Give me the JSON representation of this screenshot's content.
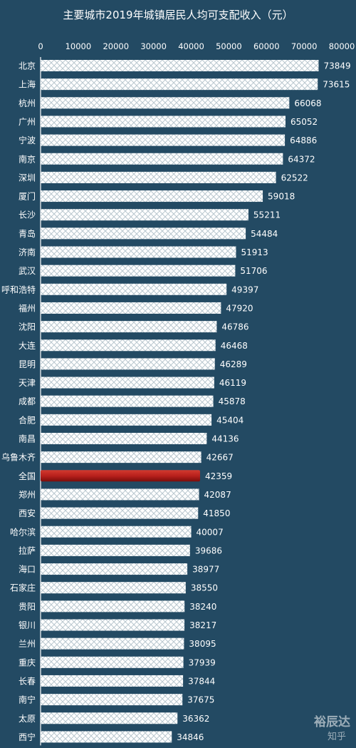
{
  "colors": {
    "background": "#234a63",
    "bar": "#ffffff",
    "bar_pattern_line": "#b9c7cf",
    "highlight_bar": "#b8201c",
    "highlight_bar_dark": "#7a0d0b",
    "text": "#ffffff"
  },
  "watermark": {
    "line1": "裕辰达",
    "line2": "知乎"
  },
  "chart_data": {
    "type": "bar",
    "orientation": "horizontal",
    "title": "主要城市2019年城镇居民人均可支配收入（元）",
    "xlim": [
      0,
      80000
    ],
    "xticks": [
      "0",
      "10000",
      "20000",
      "30000",
      "40000",
      "50000",
      "60000",
      "70000",
      "80000"
    ],
    "grid": false,
    "highlight": "全国",
    "categories": [
      "北京",
      "上海",
      "杭州",
      "广州",
      "宁波",
      "南京",
      "深圳",
      "厦门",
      "长沙",
      "青岛",
      "济南",
      "武汉",
      "呼和浩特",
      "福州",
      "沈阳",
      "大连",
      "昆明",
      "天津",
      "成都",
      "合肥",
      "南昌",
      "乌鲁木齐",
      "全国",
      "郑州",
      "西安",
      "哈尔滨",
      "拉萨",
      "海口",
      "石家庄",
      "贵阳",
      "银川",
      "兰州",
      "重庆",
      "长春",
      "南宁",
      "太原",
      "西宁"
    ],
    "values": [
      73849,
      73615,
      66068,
      65052,
      64886,
      64372,
      62522,
      59018,
      55211,
      54484,
      51913,
      51706,
      49397,
      47920,
      46786,
      46468,
      46289,
      46119,
      45878,
      45404,
      44136,
      42667,
      42359,
      42087,
      41850,
      40007,
      39686,
      38977,
      38550,
      38240,
      38217,
      38095,
      37939,
      37844,
      37675,
      36362,
      34846
    ]
  }
}
